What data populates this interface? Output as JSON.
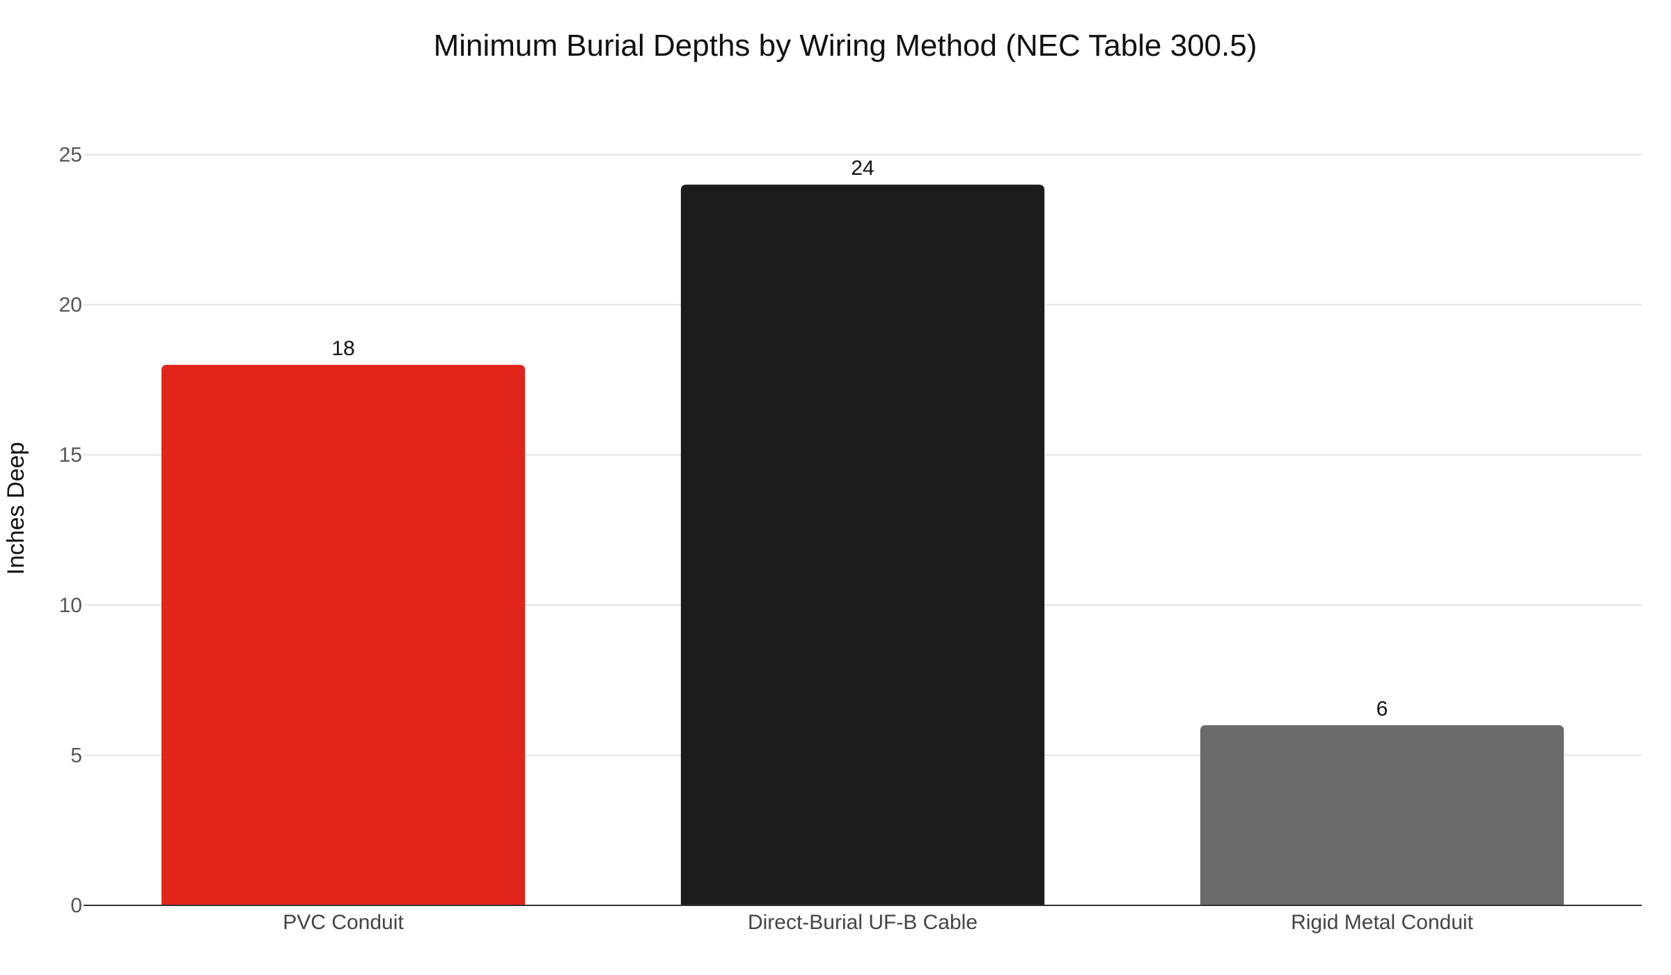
{
  "chart_data": {
    "type": "bar",
    "title": "Minimum Burial Depths by Wiring Method (NEC Table 300.5)",
    "xlabel": "",
    "ylabel": "Inches Deep",
    "categories": [
      "PVC Conduit",
      "Direct-Burial UF-B Cable",
      "Rigid Metal Conduit"
    ],
    "values": [
      18,
      24,
      6
    ],
    "data_labels": [
      "18",
      "24",
      "6"
    ],
    "bar_colors": [
      "#e1251b",
      "#1c1c1c",
      "#6b6b6b"
    ],
    "ylim": [
      0,
      25
    ],
    "yticks": [
      0,
      5,
      10,
      15,
      20,
      25
    ],
    "ytick_labels": [
      "0",
      "5",
      "10",
      "15",
      "20",
      "25"
    ],
    "grid": true,
    "legend": "none"
  }
}
